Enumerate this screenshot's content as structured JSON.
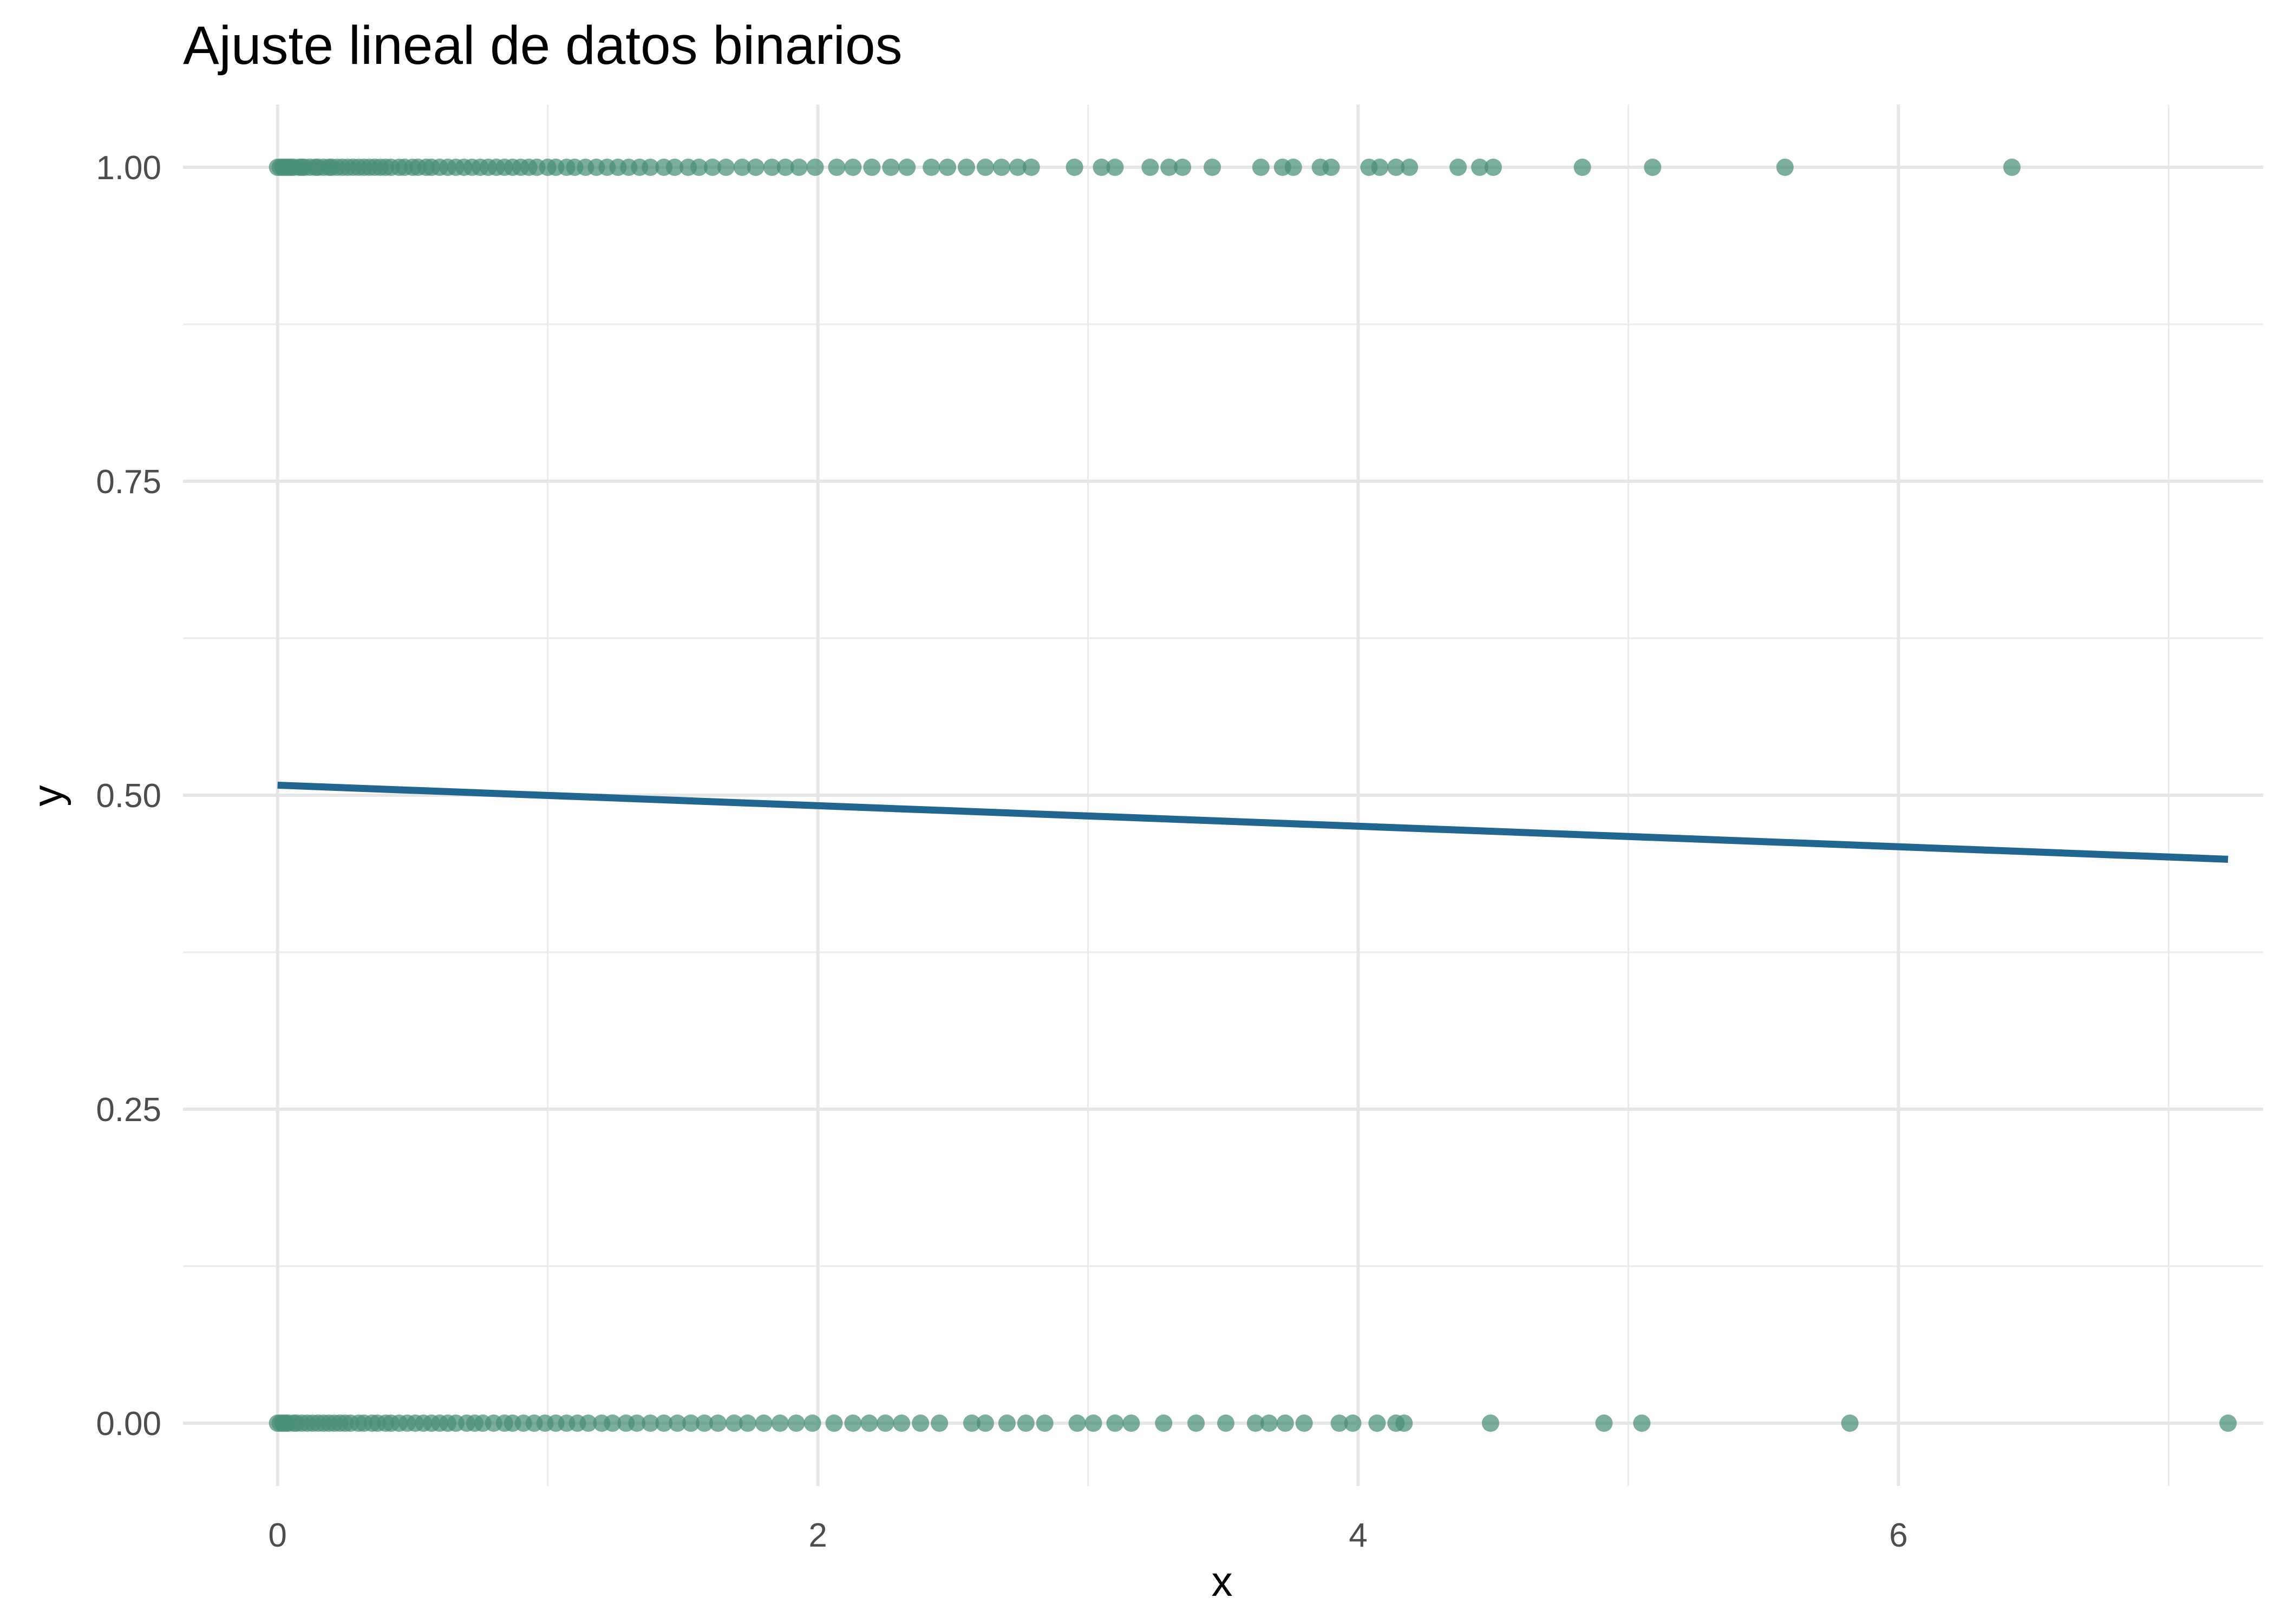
{
  "chart_data": {
    "type": "scatter",
    "title": "Ajuste lineal de datos binarios",
    "xlabel": "x",
    "ylabel": "y",
    "xlim": [
      -0.35,
      7.35
    ],
    "ylim": [
      -0.05,
      1.05
    ],
    "x_ticks": [
      {
        "value": 0,
        "label": "0"
      },
      {
        "value": 2,
        "label": "2"
      },
      {
        "value": 4,
        "label": "4"
      },
      {
        "value": 6,
        "label": "6"
      }
    ],
    "y_ticks": [
      {
        "value": 0,
        "label": "0.00"
      },
      {
        "value": 0.25,
        "label": "0.25"
      },
      {
        "value": 0.5,
        "label": "0.50"
      },
      {
        "value": 0.75,
        "label": "0.75"
      },
      {
        "value": 1,
        "label": "1.00"
      }
    ],
    "grid": true,
    "legend": "none",
    "point_color": "#4a8f78",
    "line_color": "#21668f",
    "series": [
      {
        "kind": "points",
        "y": 1,
        "x": [
          0.0,
          0.01,
          0.02,
          0.03,
          0.04,
          0.05,
          0.06,
          0.08,
          0.09,
          0.1,
          0.12,
          0.14,
          0.15,
          0.17,
          0.19,
          0.2,
          0.22,
          0.24,
          0.26,
          0.28,
          0.3,
          0.32,
          0.34,
          0.36,
          0.38,
          0.4,
          0.42,
          0.45,
          0.47,
          0.5,
          0.52,
          0.55,
          0.57,
          0.6,
          0.63,
          0.66,
          0.69,
          0.72,
          0.75,
          0.78,
          0.81,
          0.84,
          0.87,
          0.9,
          0.93,
          0.96,
          1.0,
          1.03,
          1.07,
          1.1,
          1.14,
          1.18,
          1.22,
          1.26,
          1.3,
          1.34,
          1.38,
          1.43,
          1.47,
          1.52,
          1.56,
          1.61,
          1.66,
          1.72,
          1.77,
          1.83,
          1.88,
          1.93,
          1.99,
          2.07,
          2.13,
          2.2,
          2.27,
          2.33,
          2.42,
          2.48,
          2.55,
          2.62,
          2.68,
          2.74,
          2.79,
          2.95,
          3.05,
          3.1,
          3.23,
          3.3,
          3.35,
          3.46,
          3.64,
          3.72,
          3.76,
          3.86,
          3.9,
          4.04,
          4.08,
          4.14,
          4.19,
          4.37,
          4.45,
          4.5,
          4.83,
          5.09,
          5.58,
          6.42
        ]
      },
      {
        "kind": "points",
        "y": 0,
        "x": [
          0.0,
          0.01,
          0.02,
          0.03,
          0.04,
          0.06,
          0.07,
          0.09,
          0.11,
          0.13,
          0.15,
          0.17,
          0.19,
          0.21,
          0.23,
          0.25,
          0.27,
          0.3,
          0.32,
          0.35,
          0.37,
          0.4,
          0.42,
          0.45,
          0.48,
          0.51,
          0.54,
          0.57,
          0.6,
          0.63,
          0.66,
          0.7,
          0.73,
          0.76,
          0.8,
          0.84,
          0.87,
          0.91,
          0.95,
          0.99,
          1.03,
          1.07,
          1.11,
          1.15,
          1.2,
          1.24,
          1.29,
          1.33,
          1.38,
          1.43,
          1.48,
          1.53,
          1.58,
          1.63,
          1.69,
          1.74,
          1.8,
          1.86,
          1.92,
          1.98,
          2.06,
          2.13,
          2.19,
          2.25,
          2.31,
          2.38,
          2.45,
          2.57,
          2.62,
          2.7,
          2.77,
          2.84,
          2.96,
          3.02,
          3.1,
          3.16,
          3.28,
          3.4,
          3.51,
          3.62,
          3.67,
          3.73,
          3.8,
          3.93,
          3.98,
          4.07,
          4.14,
          4.17,
          4.49,
          4.91,
          5.05,
          5.82,
          7.22
        ]
      },
      {
        "kind": "line",
        "x": [
          0,
          7.22
        ],
        "y": [
          0.508,
          0.449
        ]
      }
    ]
  }
}
